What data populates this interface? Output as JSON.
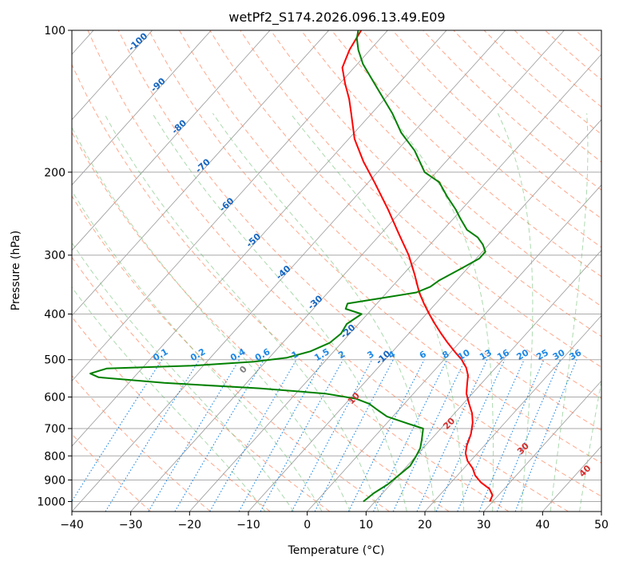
{
  "chart_data": {
    "type": "line",
    "chart_kind": "skew-t log-p diagram",
    "title": "wetPf2_S174.2026.096.13.49.E09",
    "xlabel": "Temperature (°C)",
    "ylabel": "Pressure (hPa)",
    "xlim": [
      -40,
      50
    ],
    "ylim": [
      1050,
      100
    ],
    "x_ticks": [
      -40,
      -30,
      -20,
      -10,
      0,
      10,
      20,
      30,
      40,
      50
    ],
    "x_tick_labels": [
      "−40",
      "−30",
      "−20",
      "−10",
      "0",
      "10",
      "20",
      "30",
      "40",
      "50"
    ],
    "y_ticks": [
      100,
      200,
      300,
      400,
      500,
      600,
      700,
      800,
      900,
      1000
    ],
    "y_tick_labels": [
      "100",
      "200",
      "300",
      "400",
      "500",
      "600",
      "700",
      "800",
      "900",
      "1000"
    ],
    "series": [
      {
        "name": "temperature",
        "color": "#ff0000",
        "points": [
          [
            1000,
            29.5
          ],
          [
            970,
            29.0
          ],
          [
            940,
            27.5
          ],
          [
            910,
            25.0
          ],
          [
            880,
            23.0
          ],
          [
            850,
            21.5
          ],
          [
            820,
            19.5
          ],
          [
            790,
            18.0
          ],
          [
            760,
            17.0
          ],
          [
            720,
            16.0
          ],
          [
            680,
            14.5
          ],
          [
            650,
            13.0
          ],
          [
            620,
            11.0
          ],
          [
            590,
            9.0
          ],
          [
            560,
            7.5
          ],
          [
            540,
            6.5
          ],
          [
            520,
            5.0
          ],
          [
            500,
            3.0
          ],
          [
            480,
            0.5
          ],
          [
            460,
            -2.0
          ],
          [
            440,
            -4.5
          ],
          [
            420,
            -7.0
          ],
          [
            400,
            -9.5
          ],
          [
            380,
            -12.0
          ],
          [
            360,
            -14.5
          ],
          [
            330,
            -18.0
          ],
          [
            300,
            -22.0
          ],
          [
            270,
            -27.0
          ],
          [
            240,
            -32.5
          ],
          [
            210,
            -39.0
          ],
          [
            190,
            -44.0
          ],
          [
            170,
            -49.0
          ],
          [
            150,
            -53.5
          ],
          [
            140,
            -56.0
          ],
          [
            130,
            -59.0
          ],
          [
            120,
            -62.0
          ],
          [
            110,
            -63.5
          ],
          [
            100,
            -64.5
          ]
        ]
      },
      {
        "name": "dewpoint",
        "color": "#008000",
        "points": [
          [
            1000,
            8.0
          ],
          [
            960,
            8.5
          ],
          [
            920,
            9.5
          ],
          [
            880,
            10.0
          ],
          [
            840,
            10.5
          ],
          [
            800,
            10.0
          ],
          [
            770,
            9.5
          ],
          [
            740,
            8.5
          ],
          [
            700,
            7.0
          ],
          [
            680,
            3.0
          ],
          [
            660,
            -1.0
          ],
          [
            640,
            -3.5
          ],
          [
            620,
            -6.0
          ],
          [
            605,
            -9.0
          ],
          [
            590,
            -15.0
          ],
          [
            575,
            -27.0
          ],
          [
            560,
            -44.0
          ],
          [
            545,
            -56.0
          ],
          [
            535,
            -58.0
          ],
          [
            522,
            -56.0
          ],
          [
            515,
            -42.0
          ],
          [
            505,
            -32.0
          ],
          [
            495,
            -27.0
          ],
          [
            480,
            -24.0
          ],
          [
            460,
            -22.0
          ],
          [
            440,
            -21.5
          ],
          [
            420,
            -22.0
          ],
          [
            400,
            -21.0
          ],
          [
            390,
            -24.5
          ],
          [
            380,
            -25.0
          ],
          [
            370,
            -20.0
          ],
          [
            360,
            -15.0
          ],
          [
            350,
            -13.5
          ],
          [
            340,
            -13.0
          ],
          [
            320,
            -11.0
          ],
          [
            305,
            -9.5
          ],
          [
            295,
            -9.5
          ],
          [
            285,
            -11.0
          ],
          [
            275,
            -13.0
          ],
          [
            265,
            -16.0
          ],
          [
            250,
            -19.0
          ],
          [
            240,
            -21.0
          ],
          [
            225,
            -24.5
          ],
          [
            210,
            -28.0
          ],
          [
            200,
            -32.0
          ],
          [
            180,
            -37.0
          ],
          [
            165,
            -42.0
          ],
          [
            150,
            -46.5
          ],
          [
            135,
            -52.0
          ],
          [
            125,
            -56.0
          ],
          [
            118,
            -59.0
          ],
          [
            110,
            -62.0
          ],
          [
            104,
            -64.0
          ],
          [
            100,
            -65.0
          ]
        ]
      }
    ],
    "dry_adiabats_theta_C": [
      -30,
      -20,
      -10,
      0,
      10,
      20,
      30,
      40,
      50,
      60,
      70,
      80,
      90,
      100,
      110,
      120,
      130,
      140,
      150,
      160,
      170,
      180,
      190,
      200
    ],
    "moist_adiabats_C": [
      -10,
      -5,
      0,
      5,
      10,
      15,
      20,
      25,
      30,
      35,
      40,
      45
    ],
    "isotherms_C": [
      -120,
      -110,
      -100,
      -90,
      -80,
      -70,
      -60,
      -50,
      -40,
      -30,
      -20,
      -10,
      0,
      10,
      20,
      30,
      40,
      50
    ],
    "annotations": {
      "isotherm_labels": [
        {
          "text": "-100",
          "p": 107
        },
        {
          "text": "-90",
          "p": 132
        },
        {
          "text": "-80",
          "p": 162
        },
        {
          "text": "-70",
          "p": 196
        },
        {
          "text": "-60",
          "p": 237
        },
        {
          "text": "-50",
          "p": 282
        },
        {
          "text": "-40",
          "p": 330
        },
        {
          "text": "-30",
          "p": 382
        },
        {
          "text": "-20",
          "p": 440
        },
        {
          "text": "-10",
          "p": 500
        }
      ],
      "mixing_ratio_labels": {
        "pressure": 500,
        "values": [
          0.1,
          0.2,
          0.4,
          0.6,
          1,
          1.5,
          2,
          3,
          4,
          6,
          8,
          10,
          13,
          16,
          20,
          25,
          30,
          36
        ],
        "texts": [
          "0.1",
          "0.2",
          "0.4",
          "0.6",
          "1",
          "1.5",
          "2",
          "3",
          "4",
          "6",
          "8",
          "10",
          "13",
          "16",
          "20",
          "25",
          "30",
          "36"
        ],
        "color": "#1e88e5"
      },
      "moist_adiabat_labels": [
        {
          "text": "0",
          "p": 530,
          "color": "#808080"
        },
        {
          "text": "10",
          "p": 610,
          "color": "#d32f2f"
        },
        {
          "text": "20",
          "p": 690,
          "color": "#d32f2f"
        },
        {
          "text": "30",
          "p": 780,
          "color": "#d32f2f"
        },
        {
          "text": "40",
          "p": 870,
          "color": "#d32f2f"
        }
      ]
    },
    "colors": {
      "isotherm": "#999999",
      "isobar": "#aaaaaa",
      "dry_adiabat": "#ff8a65",
      "moist_adiabat": "#66bb6a",
      "mixing_ratio": "#1e88e5",
      "isotherm_label": "#1565c0"
    }
  }
}
